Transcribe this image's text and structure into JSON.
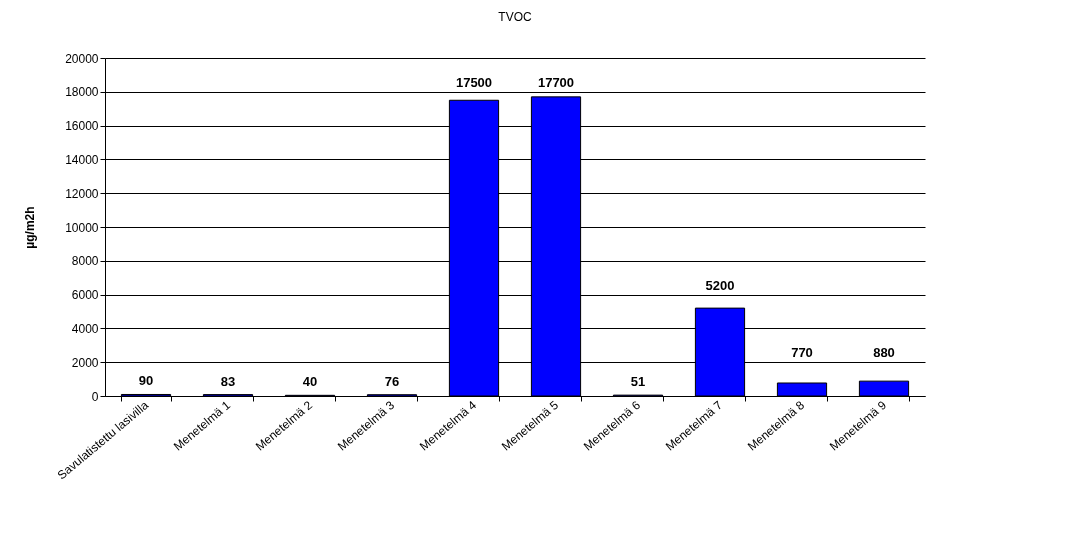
{
  "chart_data": {
    "type": "bar",
    "title": "TVOC",
    "ylabel": "µg/m2h",
    "categories": [
      "Savulatistettu lasivilla",
      "Menetelmä 1",
      "Menetelmä 2",
      "Menetelmä 3",
      "Menetelmä 4",
      "Menetelmä 5",
      "Menetelmä 6",
      "Menetelmä 7",
      "Menetelmä 8",
      "Menetelmä 9"
    ],
    "values": [
      90,
      83,
      40,
      76,
      17500,
      17700,
      51,
      5200,
      770,
      880
    ],
    "color": "#0000ff",
    "ylim": [
      0,
      20000
    ],
    "yticks": [
      0,
      2000,
      4000,
      6000,
      8000,
      10000,
      12000,
      14000,
      16000,
      18000,
      20000
    ],
    "grid": "y",
    "data_labels": true
  }
}
